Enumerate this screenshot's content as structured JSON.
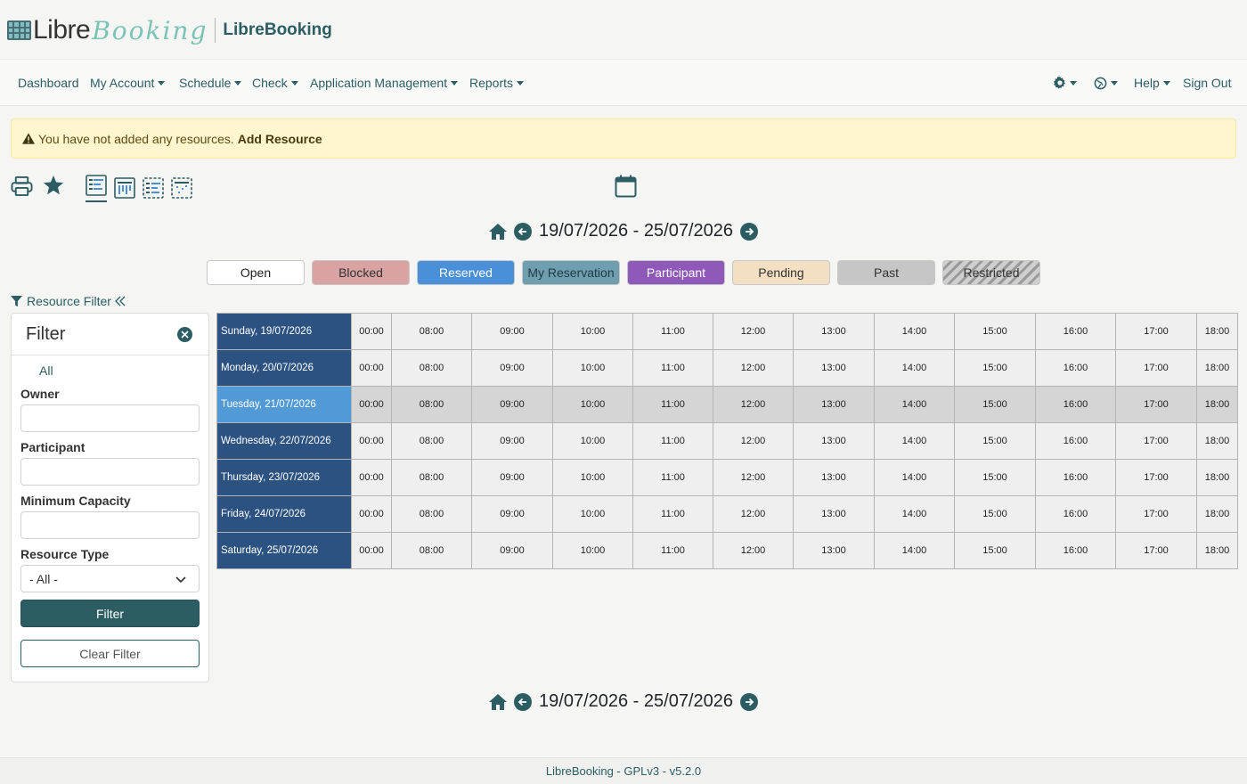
{
  "brand": {
    "logo_word_1": "Libre",
    "logo_word_2": "Booking",
    "name": "LibreBooking"
  },
  "nav": {
    "dashboard": "Dashboard",
    "my_account": "My Account",
    "schedule": "Schedule",
    "check": "Check",
    "app_management": "Application Management",
    "reports": "Reports",
    "help": "Help",
    "sign_out": "Sign Out"
  },
  "alert": {
    "message": "You have not added any resources.",
    "link": "Add Resource"
  },
  "date_range": "19/07/2026 - 25/07/2026",
  "legend": [
    {
      "label": "Open",
      "bg": "#ffffff",
      "fg": "#222222"
    },
    {
      "label": "Blocked",
      "bg": "#d9a3a3",
      "fg": "#333333"
    },
    {
      "label": "Reserved",
      "bg": "#4a90d9",
      "fg": "#ffffff"
    },
    {
      "label": "My Reservation",
      "bg": "#6f9eae",
      "fg": "#1d3b45"
    },
    {
      "label": "Participant",
      "bg": "#8e59b8",
      "fg": "#ffffff"
    },
    {
      "label": "Pending",
      "bg": "#f3dfc1",
      "fg": "#333333"
    },
    {
      "label": "Past",
      "bg": "#c6c6c6",
      "fg": "#333333"
    },
    {
      "label": "Restricted",
      "bg": "striped",
      "fg": "#333333"
    }
  ],
  "resource_filter_toggle": "Resource Filter",
  "filter": {
    "title": "Filter",
    "all_label": "All",
    "owner_label": "Owner",
    "owner_value": "",
    "participant_label": "Participant",
    "participant_value": "",
    "min_capacity_label": "Minimum Capacity",
    "min_capacity_value": "",
    "resource_type_label": "Resource Type",
    "resource_type_value": "- All -",
    "filter_button": "Filter",
    "clear_button": "Clear Filter"
  },
  "schedule": {
    "times": [
      "00:00",
      "08:00",
      "09:00",
      "10:00",
      "11:00",
      "12:00",
      "13:00",
      "14:00",
      "15:00",
      "16:00",
      "17:00",
      "18:00"
    ],
    "days": [
      "Sunday, 19/07/2026",
      "Monday, 20/07/2026",
      "Tuesday, 21/07/2026",
      "Wednesday, 22/07/2026",
      "Thursday, 23/07/2026",
      "Friday, 24/07/2026",
      "Saturday, 25/07/2026"
    ],
    "today_index": 2
  },
  "footer": "LibreBooking - GPLv3 - v5.2.0"
}
